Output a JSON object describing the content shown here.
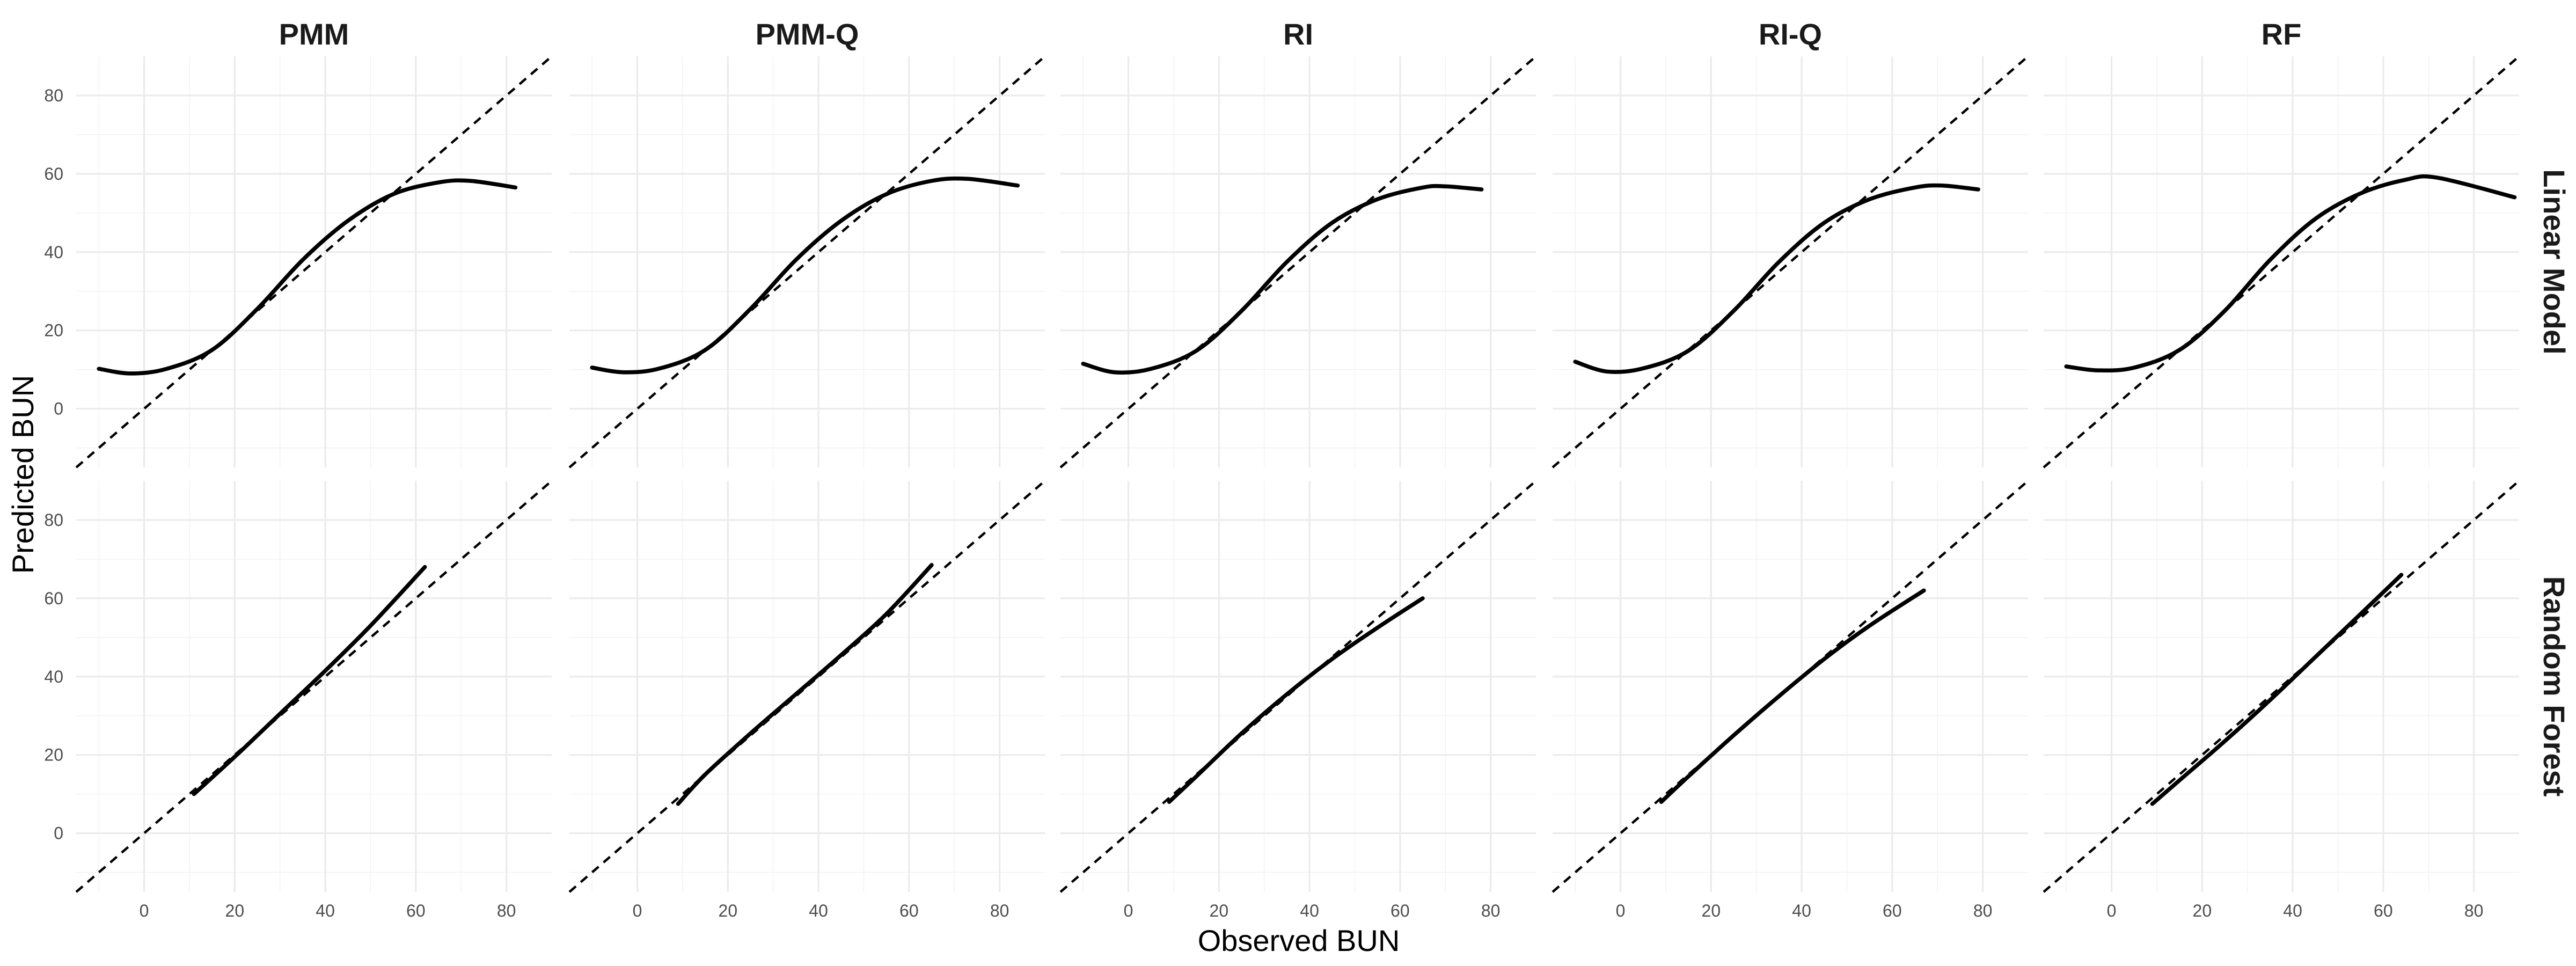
{
  "chart_data": {
    "type": "line",
    "xlabel": "Observed BUN",
    "ylabel": "Predicted BUN",
    "columns": [
      "PMM",
      "PMM-Q",
      "RI",
      "RI-Q",
      "RF"
    ],
    "rows": [
      "Linear Model",
      "Random Forest"
    ],
    "xlim": [
      -15,
      90
    ],
    "ylim": [
      -15,
      90
    ],
    "x_ticks": [
      0,
      20,
      40,
      60,
      80
    ],
    "y_ticks": [
      0,
      20,
      40,
      60,
      80
    ],
    "grid": true,
    "reference_line": {
      "slope": 1,
      "intercept": 0,
      "style": "dashed"
    },
    "series_color": "#000000",
    "panels": [
      {
        "row": "Linear Model",
        "col": "PMM",
        "x": [
          -10,
          -3,
          5,
          15,
          25,
          35,
          45,
          55,
          65,
          72,
          82
        ],
        "y": [
          10.2,
          9.0,
          10.2,
          15.0,
          25.5,
          38.0,
          48.0,
          54.8,
          57.8,
          58.2,
          56.5
        ]
      },
      {
        "row": "Linear Model",
        "col": "PMM-Q",
        "x": [
          -10,
          -3,
          5,
          15,
          25,
          35,
          45,
          55,
          65,
          73,
          84
        ],
        "y": [
          10.5,
          9.3,
          10.3,
          15.0,
          25.5,
          38.0,
          48.0,
          54.8,
          58.2,
          58.7,
          57.0
        ]
      },
      {
        "row": "Linear Model",
        "col": "RI",
        "x": [
          -10,
          -3,
          5,
          15,
          25,
          35,
          45,
          55,
          65,
          70,
          78
        ],
        "y": [
          11.5,
          9.3,
          10.2,
          14.8,
          25.0,
          37.5,
          47.5,
          53.5,
          56.5,
          56.8,
          56.0
        ]
      },
      {
        "row": "Linear Model",
        "col": "RI-Q",
        "x": [
          -10,
          -3,
          5,
          15,
          25,
          35,
          45,
          55,
          65,
          71,
          79
        ],
        "y": [
          12.0,
          9.5,
          10.3,
          14.8,
          25.0,
          37.5,
          47.5,
          53.5,
          56.5,
          57.0,
          56.0
        ]
      },
      {
        "row": "Linear Model",
        "col": "RF",
        "x": [
          -10,
          -3,
          5,
          15,
          25,
          35,
          45,
          55,
          65,
          72,
          89
        ],
        "y": [
          10.8,
          9.8,
          10.5,
          15.0,
          25.0,
          38.0,
          48.5,
          55.0,
          58.5,
          59.0,
          54.0
        ]
      },
      {
        "row": "Random Forest",
        "col": "PMM",
        "x": [
          11,
          20,
          30,
          40,
          50,
          62
        ],
        "y": [
          10.0,
          19.5,
          30.5,
          41.5,
          53.0,
          68.0
        ]
      },
      {
        "row": "Random Forest",
        "col": "PMM-Q",
        "x": [
          9,
          15,
          25,
          35,
          45,
          55,
          65
        ],
        "y": [
          7.5,
          15.0,
          25.5,
          35.5,
          45.5,
          56.0,
          68.5
        ]
      },
      {
        "row": "Random Forest",
        "col": "RI",
        "x": [
          9,
          15,
          25,
          35,
          45,
          55,
          65
        ],
        "y": [
          8.0,
          14.5,
          25.5,
          35.5,
          44.5,
          52.5,
          60.0
        ]
      },
      {
        "row": "Random Forest",
        "col": "RI-Q",
        "x": [
          9,
          15,
          25,
          35,
          45,
          55,
          67
        ],
        "y": [
          8.0,
          14.5,
          25.0,
          35.0,
          44.5,
          53.0,
          62.0
        ]
      },
      {
        "row": "Random Forest",
        "col": "RF",
        "x": [
          9,
          15,
          25,
          35,
          45,
          55,
          64
        ],
        "y": [
          7.5,
          13.5,
          23.5,
          34.0,
          45.0,
          56.0,
          66.0
        ]
      }
    ]
  }
}
